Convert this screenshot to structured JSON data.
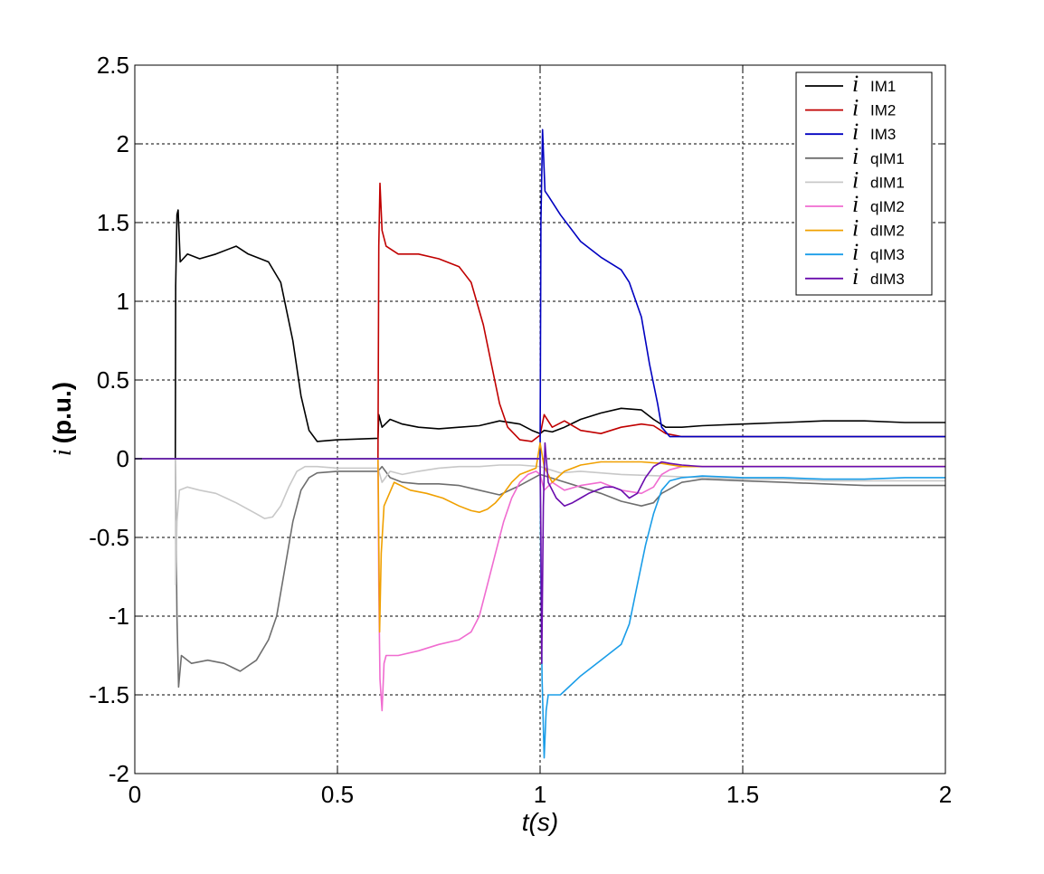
{
  "chart_data": {
    "type": "line",
    "xlabel": "t(s)",
    "ylabel_symbol": "i",
    "ylabel_text": "(p.u.)",
    "xlim": [
      0,
      2
    ],
    "ylim": [
      -2,
      2.5
    ],
    "xticks": [
      0,
      0.5,
      1,
      1.5,
      2
    ],
    "xtick_labels": [
      "0",
      "0.5",
      "1",
      "1.5",
      "2"
    ],
    "yticks": [
      -2,
      -1.5,
      -1,
      -0.5,
      0,
      0.5,
      1,
      1.5,
      2,
      2.5
    ],
    "ytick_labels": [
      "-2",
      "-1.5",
      "-1",
      "-0.5",
      "0",
      "0.5",
      "1",
      "1.5",
      "2",
      "2.5"
    ],
    "grid": true,
    "legend_position": "top-right",
    "series": [
      {
        "name": "IM1",
        "symbol": "i",
        "color": "#000000",
        "x": [
          0.0,
          0.1,
          0.101,
          0.104,
          0.107,
          0.112,
          0.13,
          0.16,
          0.2,
          0.25,
          0.28,
          0.31,
          0.33,
          0.36,
          0.39,
          0.41,
          0.43,
          0.45,
          0.5,
          0.6,
          0.602,
          0.61,
          0.63,
          0.66,
          0.7,
          0.75,
          0.8,
          0.85,
          0.9,
          0.95,
          0.98,
          1.0,
          1.01,
          1.03,
          1.06,
          1.1,
          1.15,
          1.2,
          1.25,
          1.28,
          1.31,
          1.35,
          1.4,
          1.5,
          1.6,
          1.7,
          1.8,
          1.9,
          2.0
        ],
        "y": [
          0.0,
          0.0,
          1.1,
          1.55,
          1.58,
          1.25,
          1.3,
          1.27,
          1.3,
          1.35,
          1.3,
          1.27,
          1.25,
          1.12,
          0.75,
          0.4,
          0.18,
          0.11,
          0.12,
          0.13,
          0.28,
          0.2,
          0.25,
          0.22,
          0.2,
          0.19,
          0.2,
          0.21,
          0.24,
          0.22,
          0.18,
          0.16,
          0.18,
          0.17,
          0.2,
          0.25,
          0.29,
          0.32,
          0.31,
          0.25,
          0.2,
          0.2,
          0.21,
          0.22,
          0.23,
          0.24,
          0.24,
          0.23,
          0.23
        ]
      },
      {
        "name": "IM2",
        "symbol": "i",
        "color": "#c00000",
        "x": [
          0.0,
          0.6,
          0.602,
          0.605,
          0.61,
          0.62,
          0.65,
          0.7,
          0.75,
          0.8,
          0.83,
          0.86,
          0.88,
          0.9,
          0.92,
          0.95,
          0.98,
          1.0,
          1.01,
          1.03,
          1.06,
          1.1,
          1.15,
          1.2,
          1.25,
          1.28,
          1.31,
          1.35,
          1.4,
          1.5,
          1.6,
          1.7,
          1.8,
          1.9,
          2.0
        ],
        "y": [
          0.0,
          0.0,
          1.35,
          1.75,
          1.45,
          1.35,
          1.3,
          1.3,
          1.27,
          1.22,
          1.12,
          0.85,
          0.6,
          0.35,
          0.2,
          0.12,
          0.11,
          0.15,
          0.28,
          0.2,
          0.24,
          0.18,
          0.16,
          0.2,
          0.22,
          0.21,
          0.16,
          0.14,
          0.14,
          0.14,
          0.14,
          0.14,
          0.14,
          0.14,
          0.14
        ]
      },
      {
        "name": "IM3",
        "symbol": "i",
        "color": "#0000c0",
        "x": [
          0.0,
          1.0,
          1.002,
          1.006,
          1.012,
          1.02,
          1.05,
          1.1,
          1.15,
          1.2,
          1.22,
          1.25,
          1.27,
          1.29,
          1.3,
          1.32,
          1.35,
          1.4,
          1.5,
          1.6,
          1.7,
          1.8,
          1.9,
          2.0
        ],
        "y": [
          0.0,
          0.0,
          1.5,
          2.09,
          1.7,
          1.67,
          1.55,
          1.38,
          1.28,
          1.2,
          1.12,
          0.9,
          0.6,
          0.35,
          0.2,
          0.14,
          0.14,
          0.14,
          0.14,
          0.14,
          0.14,
          0.14,
          0.14,
          0.14
        ]
      },
      {
        "name": "qIM1",
        "symbol": "i",
        "color": "#6e6e6e",
        "x": [
          0.0,
          0.1,
          0.101,
          0.104,
          0.108,
          0.115,
          0.14,
          0.18,
          0.22,
          0.26,
          0.3,
          0.33,
          0.35,
          0.37,
          0.39,
          0.41,
          0.43,
          0.45,
          0.5,
          0.6,
          0.61,
          0.63,
          0.66,
          0.7,
          0.75,
          0.8,
          0.85,
          0.9,
          0.95,
          1.0,
          1.05,
          1.1,
          1.15,
          1.2,
          1.25,
          1.28,
          1.3,
          1.35,
          1.4,
          1.5,
          1.6,
          1.7,
          1.8,
          1.9,
          2.0
        ],
        "y": [
          0.0,
          0.0,
          -0.2,
          -1.0,
          -1.45,
          -1.25,
          -1.3,
          -1.28,
          -1.3,
          -1.35,
          -1.28,
          -1.15,
          -1.0,
          -0.7,
          -0.4,
          -0.2,
          -0.12,
          -0.09,
          -0.08,
          -0.08,
          -0.05,
          -0.12,
          -0.15,
          -0.16,
          -0.16,
          -0.17,
          -0.2,
          -0.23,
          -0.17,
          -0.1,
          -0.14,
          -0.18,
          -0.22,
          -0.27,
          -0.3,
          -0.28,
          -0.22,
          -0.15,
          -0.13,
          -0.14,
          -0.15,
          -0.16,
          -0.17,
          -0.17,
          -0.17
        ]
      },
      {
        "name": "dIM1",
        "symbol": "i",
        "color": "#c8c8c8",
        "x": [
          0.0,
          0.1,
          0.101,
          0.104,
          0.11,
          0.13,
          0.16,
          0.2,
          0.25,
          0.3,
          0.32,
          0.34,
          0.36,
          0.38,
          0.4,
          0.42,
          0.45,
          0.5,
          0.6,
          0.61,
          0.63,
          0.66,
          0.7,
          0.75,
          0.8,
          0.85,
          0.9,
          0.95,
          1.0,
          1.05,
          1.1,
          1.2,
          1.3,
          1.4,
          1.5,
          1.6,
          1.7,
          1.8,
          1.9,
          2.0
        ],
        "y": [
          0.0,
          0.0,
          -0.8,
          -0.4,
          -0.2,
          -0.18,
          -0.2,
          -0.22,
          -0.28,
          -0.35,
          -0.38,
          -0.37,
          -0.3,
          -0.18,
          -0.08,
          -0.05,
          -0.05,
          -0.06,
          -0.06,
          -0.15,
          -0.08,
          -0.1,
          -0.08,
          -0.06,
          -0.05,
          -0.05,
          -0.04,
          -0.04,
          -0.05,
          -0.09,
          -0.08,
          -0.1,
          -0.11,
          -0.12,
          -0.13,
          -0.13,
          -0.14,
          -0.14,
          -0.14,
          -0.14
        ]
      },
      {
        "name": "qIM2",
        "symbol": "i",
        "color": "#f06cd0",
        "x": [
          0.0,
          0.6,
          0.602,
          0.605,
          0.61,
          0.615,
          0.62,
          0.65,
          0.7,
          0.75,
          0.8,
          0.83,
          0.85,
          0.87,
          0.89,
          0.91,
          0.93,
          0.95,
          0.97,
          0.99,
          1.0,
          1.01,
          1.03,
          1.06,
          1.1,
          1.15,
          1.2,
          1.25,
          1.28,
          1.3,
          1.32,
          1.35,
          1.4,
          1.5,
          1.6,
          1.7,
          1.8,
          1.9,
          2.0
        ],
        "y": [
          0.0,
          0.0,
          -0.8,
          -1.4,
          -1.6,
          -1.3,
          -1.25,
          -1.25,
          -1.22,
          -1.18,
          -1.15,
          -1.1,
          -1.0,
          -0.8,
          -0.6,
          -0.4,
          -0.25,
          -0.15,
          -0.1,
          -0.08,
          -0.1,
          -0.2,
          -0.15,
          -0.2,
          -0.17,
          -0.15,
          -0.2,
          -0.22,
          -0.18,
          -0.1,
          -0.07,
          -0.05,
          -0.05,
          -0.05,
          -0.05,
          -0.05,
          -0.05,
          -0.05,
          -0.05
        ]
      },
      {
        "name": "dIM2",
        "symbol": "i",
        "color": "#f0a000",
        "x": [
          0.0,
          0.6,
          0.601,
          0.604,
          0.608,
          0.615,
          0.64,
          0.68,
          0.72,
          0.76,
          0.8,
          0.83,
          0.85,
          0.87,
          0.89,
          0.91,
          0.93,
          0.95,
          0.97,
          0.99,
          1.0,
          1.01,
          1.03,
          1.06,
          1.1,
          1.15,
          1.2,
          1.25,
          1.3,
          1.35,
          1.4,
          1.5,
          1.6,
          1.7,
          1.8,
          1.9,
          2.0
        ],
        "y": [
          0.0,
          0.0,
          -0.2,
          -1.1,
          -0.6,
          -0.3,
          -0.15,
          -0.2,
          -0.22,
          -0.25,
          -0.3,
          -0.33,
          -0.34,
          -0.32,
          -0.28,
          -0.22,
          -0.15,
          -0.1,
          -0.08,
          -0.06,
          0.1,
          -0.05,
          -0.15,
          -0.08,
          -0.04,
          -0.02,
          -0.02,
          -0.02,
          -0.03,
          -0.05,
          -0.05,
          -0.05,
          -0.05,
          -0.05,
          -0.05,
          -0.05,
          -0.05
        ]
      },
      {
        "name": "qIM3",
        "symbol": "i",
        "color": "#1a9de8",
        "x": [
          0.0,
          1.0,
          1.002,
          1.005,
          1.01,
          1.015,
          1.02,
          1.05,
          1.1,
          1.15,
          1.2,
          1.22,
          1.24,
          1.26,
          1.28,
          1.3,
          1.32,
          1.35,
          1.4,
          1.5,
          1.6,
          1.7,
          1.8,
          1.9,
          2.0
        ],
        "y": [
          0.0,
          0.0,
          -0.8,
          -1.4,
          -1.9,
          -1.6,
          -1.5,
          -1.5,
          -1.38,
          -1.28,
          -1.18,
          -1.05,
          -0.8,
          -0.55,
          -0.35,
          -0.2,
          -0.14,
          -0.12,
          -0.11,
          -0.12,
          -0.12,
          -0.13,
          -0.13,
          -0.12,
          -0.12
        ]
      },
      {
        "name": "dIM3",
        "symbol": "i",
        "color": "#6a0dad",
        "x": [
          0.0,
          1.0,
          1.002,
          1.004,
          1.008,
          1.012,
          1.02,
          1.04,
          1.06,
          1.08,
          1.1,
          1.12,
          1.14,
          1.16,
          1.18,
          1.2,
          1.22,
          1.24,
          1.26,
          1.28,
          1.3,
          1.32,
          1.35,
          1.4,
          1.5,
          1.6,
          1.7,
          1.8,
          1.9,
          2.0
        ],
        "y": [
          0.0,
          0.0,
          -0.5,
          -1.3,
          -0.3,
          0.1,
          -0.15,
          -0.25,
          -0.3,
          -0.28,
          -0.25,
          -0.22,
          -0.2,
          -0.18,
          -0.18,
          -0.2,
          -0.25,
          -0.22,
          -0.12,
          -0.05,
          -0.02,
          -0.03,
          -0.04,
          -0.05,
          -0.05,
          -0.05,
          -0.05,
          -0.05,
          -0.05,
          -0.05
        ]
      }
    ]
  }
}
